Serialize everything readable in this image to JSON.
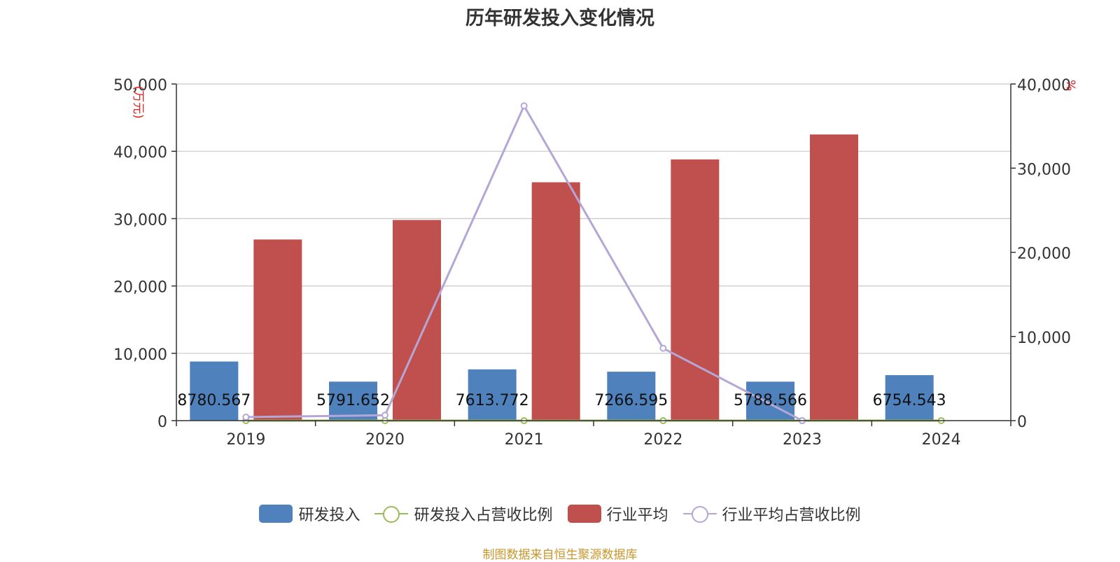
{
  "chart_data": {
    "type": "bar",
    "title": "历年研发投入变化情况",
    "categories": [
      "2019",
      "2020",
      "2021",
      "2022",
      "2023",
      "2024"
    ],
    "left_axis": {
      "label": "(万元)",
      "min": 0,
      "max": 50000,
      "ticks": [
        "0",
        "10,000",
        "20,000",
        "30,000",
        "40,000",
        "50,000"
      ]
    },
    "right_axis": {
      "label": "%",
      "min": 0,
      "max": 40000,
      "ticks": [
        "0",
        "10,000",
        "20,000",
        "30,000",
        "40,000"
      ]
    },
    "grid": true,
    "legend_position": "bottom",
    "series": [
      {
        "name": "研发投入",
        "kind": "bar",
        "axis": "left",
        "color": "#4f81bd",
        "values": [
          8780.567,
          5791.652,
          7613.772,
          7266.595,
          5788.566,
          6754.543
        ],
        "labels": [
          "8780.567",
          "5791.652",
          "7613.772",
          "7266.595",
          "5788.566",
          "6754.543"
        ]
      },
      {
        "name": "研发投入占营收比例",
        "kind": "line",
        "axis": "right",
        "color": "#9bbb59",
        "values": [
          0,
          0,
          0,
          0,
          0,
          0
        ]
      },
      {
        "name": "行业平均",
        "kind": "bar",
        "axis": "left",
        "color": "#c0504d",
        "values": [
          26900,
          29800,
          35400,
          38800,
          42500,
          null
        ]
      },
      {
        "name": "行业平均占营收比例",
        "kind": "line",
        "axis": "right",
        "color": "#b4a7d6",
        "values": [
          420,
          640,
          37400,
          8600,
          0,
          null
        ]
      }
    ]
  },
  "source": "制图数据来自恒生聚源数据库"
}
